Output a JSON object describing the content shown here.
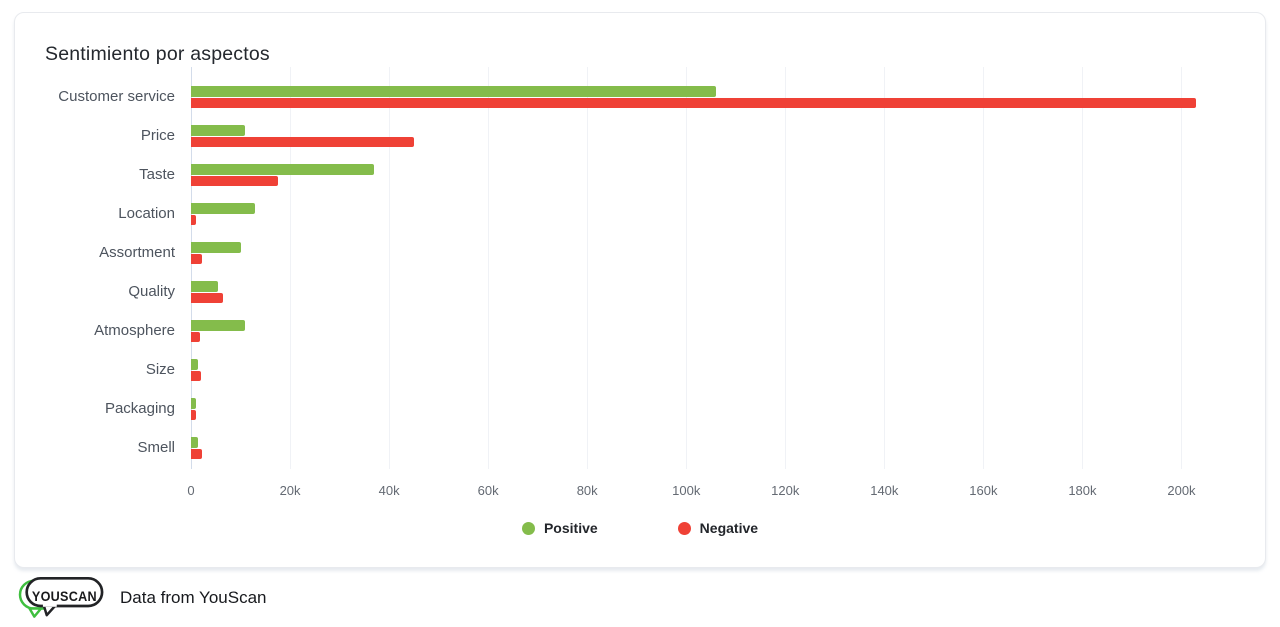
{
  "card": {
    "title": "Sentimiento por aspectos"
  },
  "chart_data": {
    "type": "bar",
    "orientation": "horizontal",
    "title": "Sentimiento por aspectos",
    "categories": [
      "Customer service",
      "Price",
      "Taste",
      "Location",
      "Assortment",
      "Quality",
      "Atmosphere",
      "Size",
      "Packaging",
      "Smell"
    ],
    "series": [
      {
        "name": "Positive",
        "color": "#84BC4B",
        "values": [
          106000,
          11000,
          37000,
          13000,
          10000,
          5500,
          11000,
          1500,
          1000,
          1500
        ]
      },
      {
        "name": "Negative",
        "color": "#EF4136",
        "values": [
          203000,
          45000,
          17500,
          1000,
          2200,
          6500,
          1800,
          2000,
          1000,
          2200
        ]
      }
    ],
    "x_ticks": [
      "0",
      "20k",
      "40k",
      "60k",
      "80k",
      "100k",
      "120k",
      "140k",
      "160k",
      "180k",
      "200k"
    ],
    "x_tick_values": [
      0,
      20000,
      40000,
      60000,
      80000,
      100000,
      120000,
      140000,
      160000,
      180000,
      200000
    ],
    "xlim": [
      0,
      210000
    ],
    "grid": true,
    "legend_position": "bottom",
    "legend": [
      {
        "label": "Positive",
        "color": "#84BC4B"
      },
      {
        "label": "Negative",
        "color": "#EF4136"
      }
    ]
  },
  "footer": {
    "logo_text": "YOUSCAN",
    "attribution": "Data from YouScan"
  },
  "colors": {
    "positive": "#84BC4B",
    "negative": "#EF4136",
    "logo_green": "#3FBF3F",
    "logo_dark": "#222326",
    "card_border": "#e8eaee"
  }
}
